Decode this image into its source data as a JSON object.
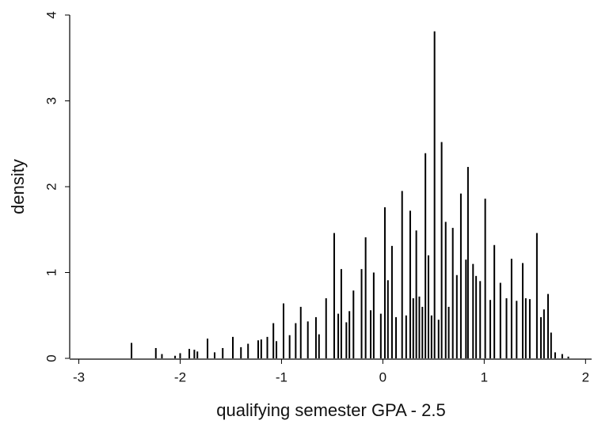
{
  "chart_data": {
    "type": "spike",
    "x_label": "qualifying semester GPA - 2.5",
    "y_label": "density",
    "color": "#000000",
    "xlim": [
      -3.09,
      2.06
    ],
    "ylim": [
      0,
      4
    ],
    "xticks": [
      -3,
      -2,
      -1,
      0,
      1,
      2
    ],
    "yticks": [
      0,
      1,
      2,
      3,
      4
    ],
    "x": [
      -2.48,
      -2.24,
      -2.18,
      -2.05,
      -2.0,
      -1.91,
      -1.86,
      -1.83,
      -1.73,
      -1.66,
      -1.58,
      -1.48,
      -1.4,
      -1.33,
      -1.23,
      -1.2,
      -1.14,
      -1.08,
      -1.05,
      -0.98,
      -0.92,
      -0.86,
      -0.81,
      -0.74,
      -0.66,
      -0.63,
      -0.56,
      -0.48,
      -0.44,
      -0.41,
      -0.36,
      -0.33,
      -0.29,
      -0.21,
      -0.17,
      -0.12,
      -0.09,
      -0.02,
      0.02,
      0.05,
      0.09,
      0.13,
      0.19,
      0.23,
      0.27,
      0.3,
      0.33,
      0.36,
      0.39,
      0.42,
      0.45,
      0.48,
      0.51,
      0.55,
      0.58,
      0.62,
      0.65,
      0.69,
      0.73,
      0.77,
      0.82,
      0.84,
      0.89,
      0.92,
      0.96,
      1.01,
      1.06,
      1.1,
      1.16,
      1.22,
      1.27,
      1.32,
      1.38,
      1.41,
      1.45,
      1.52,
      1.56,
      1.59,
      1.63,
      1.66,
      1.7,
      1.77,
      1.83
    ],
    "values": [
      0.18,
      0.12,
      0.05,
      0.03,
      0.06,
      0.11,
      0.1,
      0.08,
      0.23,
      0.07,
      0.12,
      0.25,
      0.13,
      0.17,
      0.21,
      0.22,
      0.25,
      0.41,
      0.2,
      0.64,
      0.27,
      0.41,
      0.6,
      0.43,
      0.48,
      0.28,
      0.7,
      1.46,
      0.52,
      1.04,
      0.42,
      0.55,
      0.79,
      1.04,
      1.41,
      0.56,
      1.0,
      0.52,
      1.76,
      0.91,
      1.31,
      0.48,
      1.95,
      0.5,
      1.72,
      0.7,
      1.49,
      0.72,
      0.6,
      2.39,
      1.2,
      0.5,
      3.81,
      0.45,
      2.52,
      1.59,
      0.6,
      1.52,
      0.97,
      1.92,
      1.15,
      2.23,
      1.1,
      0.96,
      0.9,
      1.86,
      0.68,
      1.32,
      0.88,
      0.7,
      1.16,
      0.67,
      1.11,
      0.7,
      0.69,
      1.46,
      0.48,
      0.57,
      0.75,
      0.3,
      0.07,
      0.05,
      0.02
    ]
  }
}
